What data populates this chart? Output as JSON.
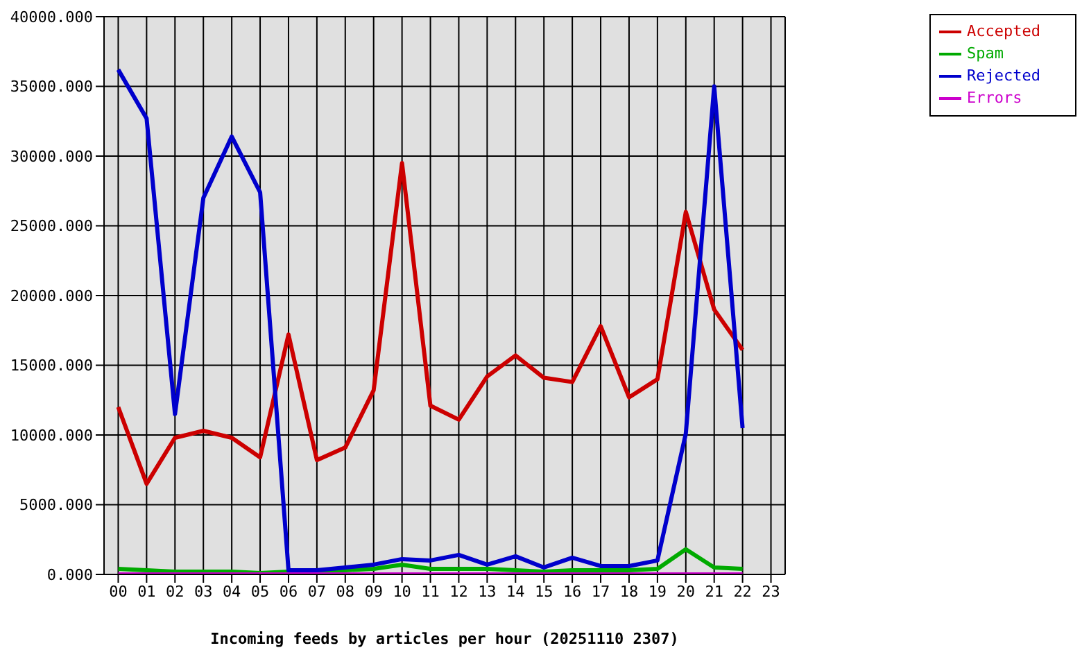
{
  "chart_data": {
    "type": "line",
    "xlabel": "Incoming feeds by articles per hour (20251110 2307)",
    "categories": [
      "00",
      "01",
      "02",
      "03",
      "04",
      "05",
      "06",
      "07",
      "08",
      "09",
      "10",
      "11",
      "12",
      "13",
      "14",
      "15",
      "16",
      "17",
      "18",
      "19",
      "20",
      "21",
      "22",
      "23"
    ],
    "series": [
      {
        "name": "Accepted",
        "color": "#cc0000",
        "values": [
          12000,
          6500,
          9800,
          10300,
          9800,
          8400,
          17200,
          8200,
          9100,
          13200,
          29500,
          12100,
          11100,
          14200,
          15700,
          14100,
          13800,
          17800,
          12700,
          14000,
          26000,
          19000,
          16100,
          null
        ]
      },
      {
        "name": "Spam",
        "color": "#00aa00",
        "values": [
          400,
          300,
          200,
          200,
          200,
          100,
          200,
          200,
          300,
          400,
          700,
          400,
          400,
          400,
          300,
          200,
          300,
          300,
          300,
          400,
          1800,
          500,
          400,
          null
        ]
      },
      {
        "name": "Rejected",
        "color": "#0000cc",
        "values": [
          36200,
          32700,
          11500,
          27000,
          31400,
          27400,
          300,
          300,
          500,
          700,
          1100,
          1000,
          1400,
          700,
          1300,
          500,
          1200,
          600,
          600,
          1000,
          10100,
          35000,
          10500,
          null
        ]
      },
      {
        "name": "Errors",
        "color": "#cc00cc",
        "values": [
          0,
          0,
          0,
          0,
          0,
          0,
          0,
          0,
          0,
          0,
          0,
          0,
          0,
          0,
          0,
          0,
          0,
          0,
          0,
          0,
          0,
          0,
          0,
          null
        ]
      }
    ],
    "ylim": [
      0,
      40000
    ],
    "yticks": [
      {
        "value": 0,
        "label": "0.000"
      },
      {
        "value": 5000,
        "label": "5000.000"
      },
      {
        "value": 10000,
        "label": "10000.000"
      },
      {
        "value": 15000,
        "label": "15000.000"
      },
      {
        "value": 20000,
        "label": "20000.000"
      },
      {
        "value": 25000,
        "label": "25000.000"
      },
      {
        "value": 30000,
        "label": "30000.000"
      },
      {
        "value": 35000,
        "label": "35000.000"
      },
      {
        "value": 40000,
        "label": "40000.000"
      }
    ],
    "grid": true,
    "legend": "top right",
    "marker": "none",
    "line_style": "solid"
  }
}
